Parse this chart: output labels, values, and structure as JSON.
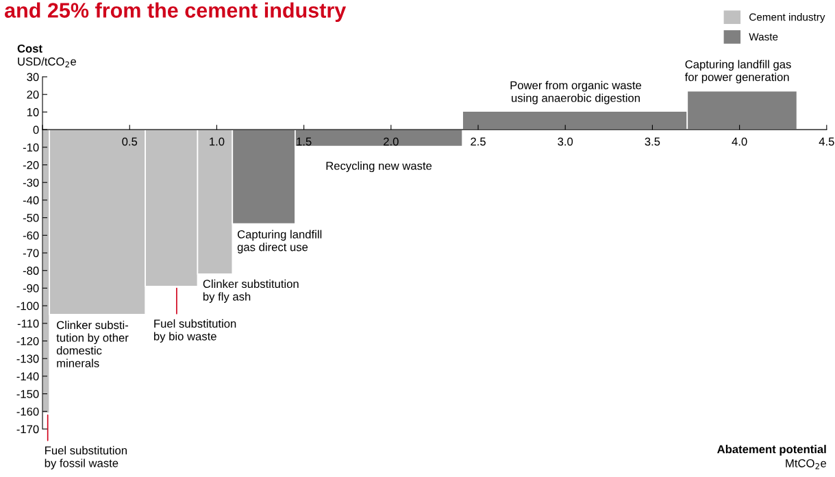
{
  "chart_data": {
    "type": "histogram",
    "title": "and 25% from the cement industry",
    "xlabel": "Abatement potential\nMtCO$_{2}$e",
    "ylabel": "Cost\nUSD/tCO$_{2}$e",
    "bins": [
      0,
      0.04,
      0.59,
      0.89,
      1.09,
      1.45,
      2.41,
      3.7,
      4.33
    ],
    "series": [
      {
        "name": "Cement industry",
        "color": "#c0c0c0",
        "values": [
          -161,
          -105,
          -89,
          -82,
          null,
          null,
          null,
          null
        ]
      },
      {
        "name": "Waste",
        "color": "#808080",
        "values": [
          null,
          null,
          null,
          null,
          -53.5,
          -9.5,
          10.5,
          22
        ]
      }
    ],
    "xlim": [
      0,
      4.5
    ],
    "xticks": [
      {
        "value": 0,
        "label": null
      },
      0.5,
      {
        "value": 1,
        "label": "1.0"
      },
      1.5,
      {
        "value": 2,
        "label": "2.0"
      },
      2.5,
      {
        "value": 3,
        "label": "3.0"
      },
      3.5,
      {
        "value": 4,
        "label": "4.0"
      },
      4.5
    ],
    "ylim": [
      -170,
      30
    ],
    "yticks": [
      -170,
      -160,
      -150,
      -140,
      -130,
      -120,
      -110,
      -100,
      -90,
      -80,
      -70,
      -60,
      -50,
      -40,
      -30,
      -20,
      -10,
      0,
      10,
      20,
      30
    ],
    "annotations": [
      {
        "text": "Fuel substitution\nby fossil waste",
        "x": 0.03,
        "y": -161
      },
      {
        "text": "Clinker substi-\ntution by other\ndomestic\nminerals",
        "x": 0.315,
        "y": -105
      },
      {
        "text": "Fuel substitution\nby bio waste",
        "x": 0.77,
        "y": -89
      },
      {
        "text": "Clinker substitution\nby fly ash",
        "x": 0.99,
        "y": -82
      },
      {
        "text": "Capturing landfill\ngas direct use",
        "x": 1.27,
        "y": -53.5
      },
      {
        "text": "Recycling new waste",
        "x": 1.93,
        "y": -9.5
      },
      {
        "text": "Power from organic waste\nusing anaerobic digestion",
        "x": 3.06,
        "y": 10.5
      },
      {
        "text": "Capturing landfill gas\nfor power generation",
        "x": 4.02,
        "y": 22
      }
    ],
    "legend": "top right",
    "grid": false
  }
}
